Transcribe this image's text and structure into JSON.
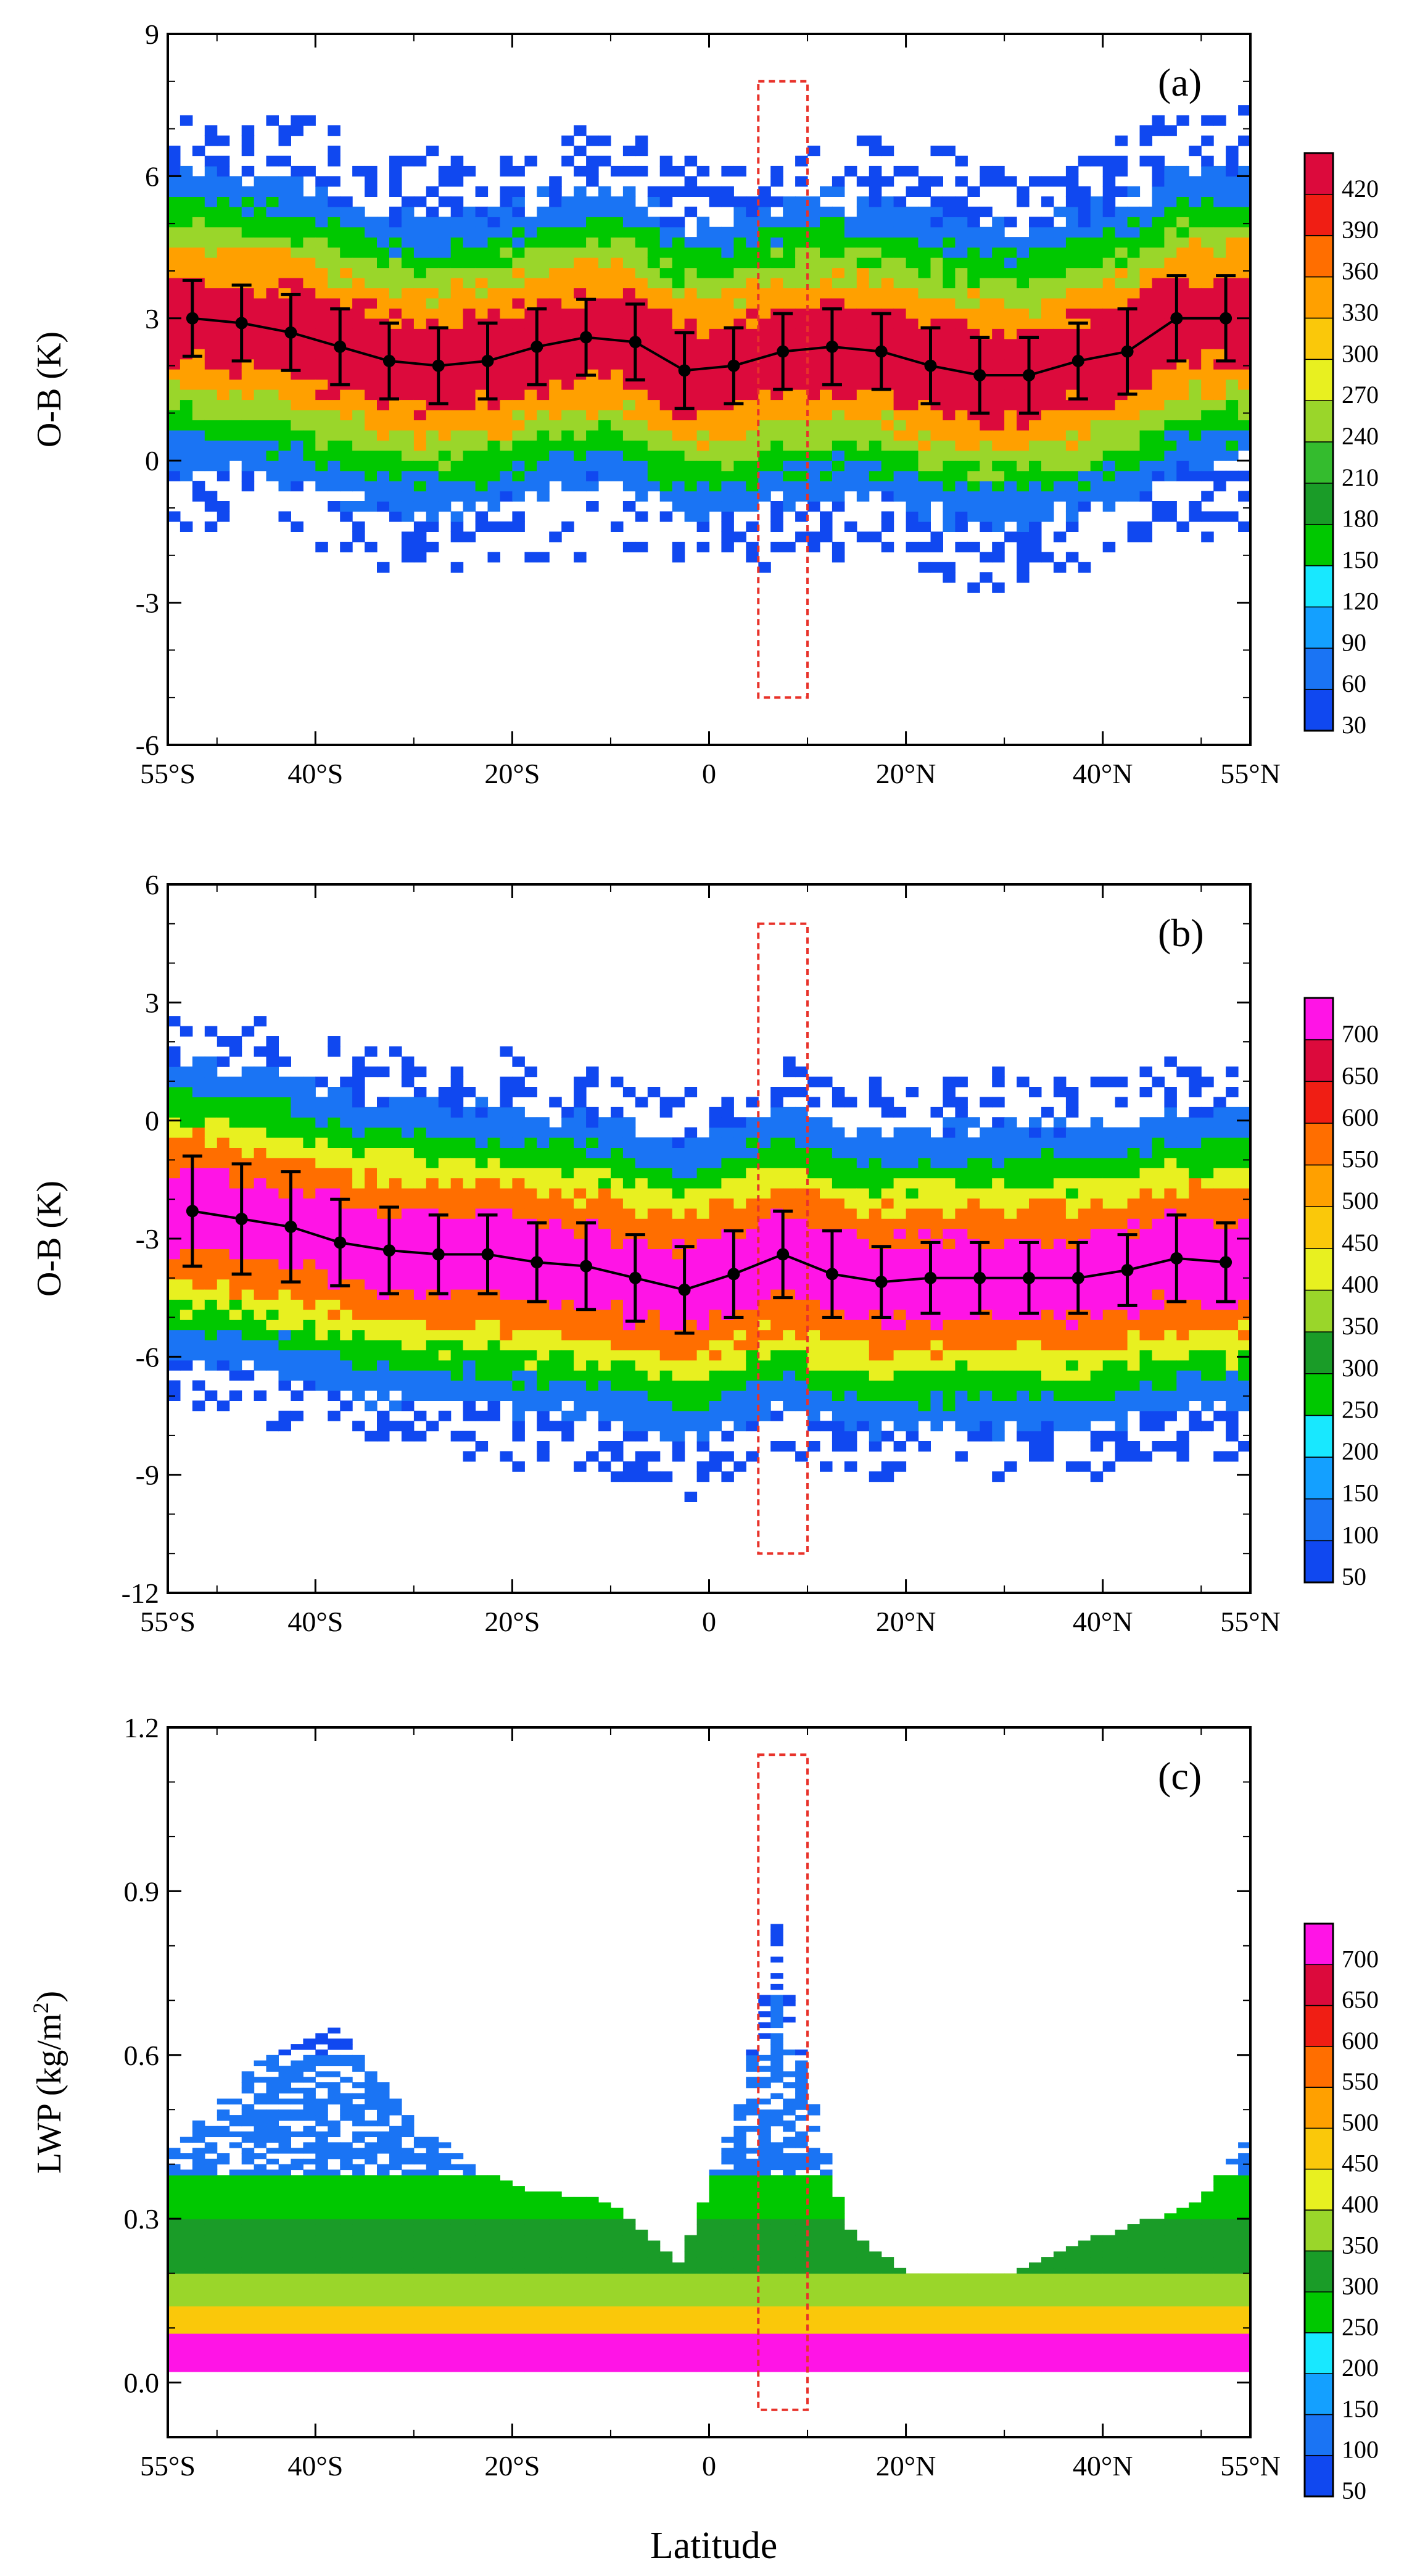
{
  "figure": {
    "xlabel": "Latitude",
    "x_ticks": [
      {
        "value": -55,
        "label": "55°S"
      },
      {
        "value": -40,
        "label": "40°S"
      },
      {
        "value": -20,
        "label": "20°S"
      },
      {
        "value": 0,
        "label": "0"
      },
      {
        "value": 20,
        "label": "20°N"
      },
      {
        "value": 40,
        "label": "40°N"
      },
      {
        "value": 55,
        "label": "55°N"
      }
    ]
  },
  "chart_data": [
    {
      "type": "heatmap",
      "panel_label": "(a)",
      "ylabel": "O-B (K)",
      "xlim": [
        -55,
        55
      ],
      "ylim": [
        -6,
        9
      ],
      "y_ticks": [
        -6,
        -3,
        0,
        3,
        6,
        9
      ],
      "colorbar": {
        "levels": [
          30,
          60,
          90,
          120,
          150,
          180,
          210,
          240,
          270,
          300,
          330,
          360,
          390,
          420
        ],
        "colors": [
          "#1048f0",
          "#1a74f4",
          "#14a0ff",
          "#18e8ff",
          "#00c800",
          "#1a9c28",
          "#34bc2e",
          "#9ad62a",
          "#e8f020",
          "#fac80a",
          "#ffa000",
          "#ff6e00",
          "#f01e14",
          "#dc0a3c"
        ]
      },
      "density_bands": [
        {
          "count": 420,
          "half_width": 0.9
        },
        {
          "count": 330,
          "half_width": 1.5
        },
        {
          "count": 240,
          "half_width": 2.0
        },
        {
          "count": 150,
          "half_width": 2.5
        },
        {
          "count": 60,
          "half_width": 3.1
        }
      ],
      "highlight_box": {
        "lat_range": [
          5,
          10
        ],
        "y_range": [
          -5,
          8
        ]
      },
      "series": [
        {
          "x": [
            -52.5,
            -47.5,
            -42.5,
            -37.5,
            -32.5,
            -27.5,
            -22.5,
            -17.5,
            -12.5,
            -7.5,
            -2.5,
            2.5,
            7.5,
            12.5,
            17.5,
            22.5,
            27.5,
            32.5,
            37.5,
            42.5,
            47.5,
            52.5
          ],
          "mean": [
            3.0,
            2.9,
            2.7,
            2.4,
            2.1,
            2.0,
            2.1,
            2.4,
            2.6,
            2.5,
            1.9,
            2.0,
            2.3,
            2.4,
            2.3,
            2.0,
            1.8,
            1.8,
            2.1,
            2.3,
            3.0,
            3.0
          ],
          "std": [
            0.8,
            0.8,
            0.8,
            0.8,
            0.8,
            0.8,
            0.8,
            0.8,
            0.8,
            0.8,
            0.8,
            0.8,
            0.8,
            0.8,
            0.8,
            0.8,
            0.8,
            0.8,
            0.8,
            0.9,
            0.9,
            0.9
          ]
        }
      ]
    },
    {
      "type": "heatmap",
      "panel_label": "(b)",
      "ylabel": "O-B (K)",
      "xlim": [
        -55,
        55
      ],
      "ylim": [
        -12,
        6
      ],
      "y_ticks": [
        -12,
        -9,
        -6,
        -3,
        0,
        3,
        6
      ],
      "colorbar": {
        "levels": [
          50,
          100,
          150,
          200,
          250,
          300,
          350,
          400,
          450,
          500,
          550,
          600,
          650,
          700
        ],
        "colors": [
          "#1048f0",
          "#1a74f4",
          "#14a0ff",
          "#18e8ff",
          "#00c800",
          "#1a9c28",
          "#9ad62a",
          "#e8f020",
          "#fac80a",
          "#ffa000",
          "#ff6e00",
          "#f01e14",
          "#dc0a3c",
          "#ff14e6"
        ]
      },
      "density_bands": [
        {
          "count": 700,
          "half_width": 1.0
        },
        {
          "count": 550,
          "half_width": 1.8
        },
        {
          "count": 400,
          "half_width": 2.4
        },
        {
          "count": 250,
          "half_width": 3.0
        },
        {
          "count": 100,
          "half_width": 3.8
        }
      ],
      "highlight_box": {
        "lat_range": [
          5,
          10
        ],
        "y_range": [
          -11,
          5
        ]
      },
      "series": [
        {
          "x": [
            -52.5,
            -47.5,
            -42.5,
            -37.5,
            -32.5,
            -27.5,
            -22.5,
            -17.5,
            -12.5,
            -7.5,
            -2.5,
            2.5,
            7.5,
            12.5,
            17.5,
            22.5,
            27.5,
            32.5,
            37.5,
            42.5,
            47.5,
            52.5
          ],
          "mean": [
            -2.3,
            -2.5,
            -2.7,
            -3.1,
            -3.3,
            -3.4,
            -3.4,
            -3.6,
            -3.7,
            -4.0,
            -4.3,
            -3.9,
            -3.4,
            -3.9,
            -4.1,
            -4.0,
            -4.0,
            -4.0,
            -4.0,
            -3.8,
            -3.5,
            -3.6
          ],
          "std": [
            1.4,
            1.4,
            1.4,
            1.1,
            1.1,
            1.0,
            1.0,
            1.0,
            1.1,
            1.1,
            1.1,
            1.1,
            1.1,
            1.1,
            0.9,
            0.9,
            0.9,
            0.9,
            0.9,
            0.9,
            1.1,
            1.0
          ]
        }
      ]
    },
    {
      "type": "heatmap",
      "panel_label": "(c)",
      "ylabel": "LWP (kg/m",
      "ylabel_sup": "2",
      "ylabel_suffix": ")",
      "xlim": [
        -55,
        55
      ],
      "ylim": [
        -0.1,
        1.2
      ],
      "y_ticks": [
        0.0,
        0.3,
        0.6,
        0.9,
        1.2
      ],
      "y_tick_labels": [
        "0.0",
        "0.3",
        "0.6",
        "0.9",
        "1.2"
      ],
      "colorbar": {
        "levels": [
          50,
          100,
          150,
          200,
          250,
          300,
          350,
          400,
          450,
          500,
          550,
          600,
          650,
          700
        ],
        "colors": [
          "#1048f0",
          "#1a74f4",
          "#14a0ff",
          "#18e8ff",
          "#00c800",
          "#1a9c28",
          "#9ad62a",
          "#e8f020",
          "#fac80a",
          "#ffa000",
          "#ff6e00",
          "#f01e14",
          "#dc0a3c",
          "#ff14e6"
        ]
      },
      "lwp_profile": {
        "top_lwp_by_latitude": [
          [
            -55,
            0.42
          ],
          [
            -45,
            0.6
          ],
          [
            -38,
            0.65
          ],
          [
            -30,
            0.48
          ],
          [
            -20,
            0.36
          ],
          [
            -10,
            0.33
          ],
          [
            -3,
            0.22
          ],
          [
            3,
            0.5
          ],
          [
            7,
            0.85
          ],
          [
            10,
            0.55
          ],
          [
            14,
            0.28
          ],
          [
            20,
            0.2
          ],
          [
            30,
            0.2
          ],
          [
            40,
            0.27
          ],
          [
            50,
            0.33
          ],
          [
            55,
            0.45
          ]
        ],
        "bands": [
          {
            "count": 700,
            "lwp_range": [
              0.02,
              0.09
            ]
          },
          {
            "count": 450,
            "lwp_range": [
              0.09,
              0.14
            ]
          },
          {
            "count": 350,
            "lwp_range": [
              0.14,
              0.2
            ]
          },
          {
            "count": 300,
            "lwp_range": [
              0.2,
              0.3
            ]
          },
          {
            "count": 250,
            "lwp_range": [
              0.3,
              0.38
            ]
          },
          {
            "count": 100,
            "lwp_range": [
              0.38,
              0.6
            ]
          }
        ]
      },
      "highlight_box": {
        "lat_range": [
          5,
          10
        ],
        "y_range": [
          -0.05,
          1.15
        ]
      }
    }
  ]
}
